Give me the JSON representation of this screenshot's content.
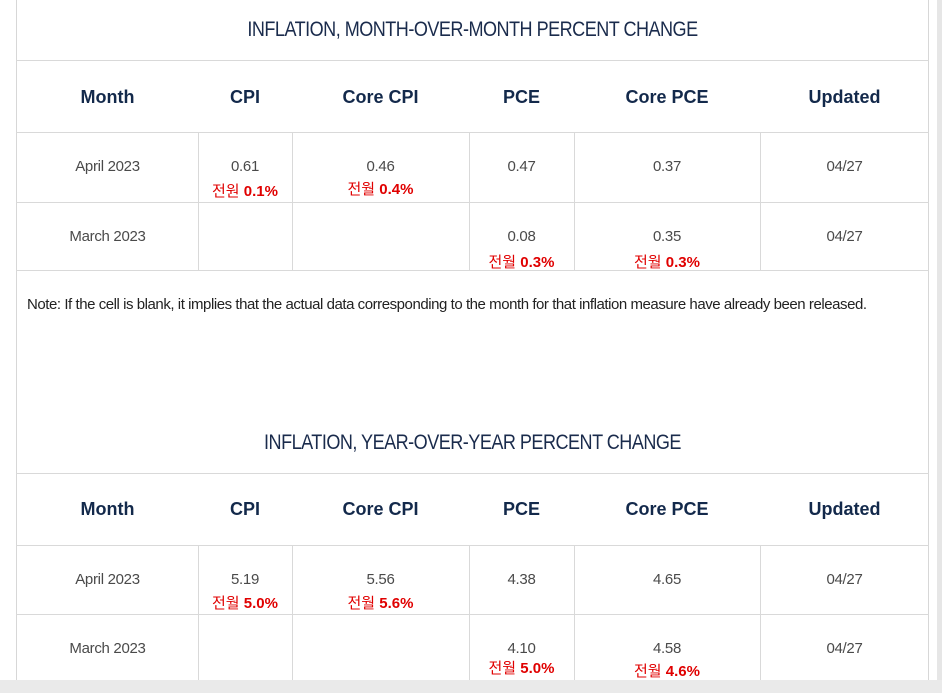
{
  "table1": {
    "title": "INFLATION, MONTH-OVER-MONTH PERCENT CHANGE",
    "headers": [
      "Month",
      "CPI",
      "Core CPI",
      "PCE",
      "Core PCE",
      "Updated"
    ],
    "rows": [
      {
        "month": "April 2023",
        "cpi": "0.61",
        "core_cpi": "0.46",
        "pce": "0.47",
        "core_pce": "0.37",
        "updated": "04/27",
        "cpi_note_kr": "전원",
        "cpi_note_val": "0.1%",
        "core_cpi_note_kr": "전월",
        "core_cpi_note_val": "0.4%"
      },
      {
        "month": "March 2023",
        "cpi": "",
        "core_cpi": "",
        "pce": "0.08",
        "core_pce": "0.35",
        "updated": "04/27",
        "pce_note_kr": "전월",
        "pce_note_val": "0.3%",
        "core_pce_note_kr": "전월",
        "core_pce_note_val": "0.3%"
      }
    ]
  },
  "footnote": "Note: If the cell is blank, it implies that the actual data corresponding to the month for that inflation measure have already been released.",
  "table2": {
    "title": "INFLATION, YEAR-OVER-YEAR PERCENT CHANGE",
    "headers": [
      "Month",
      "CPI",
      "Core CPI",
      "PCE",
      "Core PCE",
      "Updated"
    ],
    "rows": [
      {
        "month": "April 2023",
        "cpi": "5.19",
        "core_cpi": "5.56",
        "pce": "4.38",
        "core_pce": "4.65",
        "updated": "04/27",
        "cpi_note_kr": "전월",
        "cpi_note_val": "5.0%",
        "core_cpi_note_kr": "전월",
        "core_cpi_note_val": "5.6%"
      },
      {
        "month": "March 2023",
        "cpi": "",
        "core_cpi": "",
        "pce": "4.10",
        "core_pce": "4.58",
        "updated": "04/27",
        "pce_note_kr": "전월",
        "pce_note_val": "5.0%",
        "core_pce_note_kr": "전월",
        "core_pce_note_val": "4.6%"
      }
    ]
  }
}
